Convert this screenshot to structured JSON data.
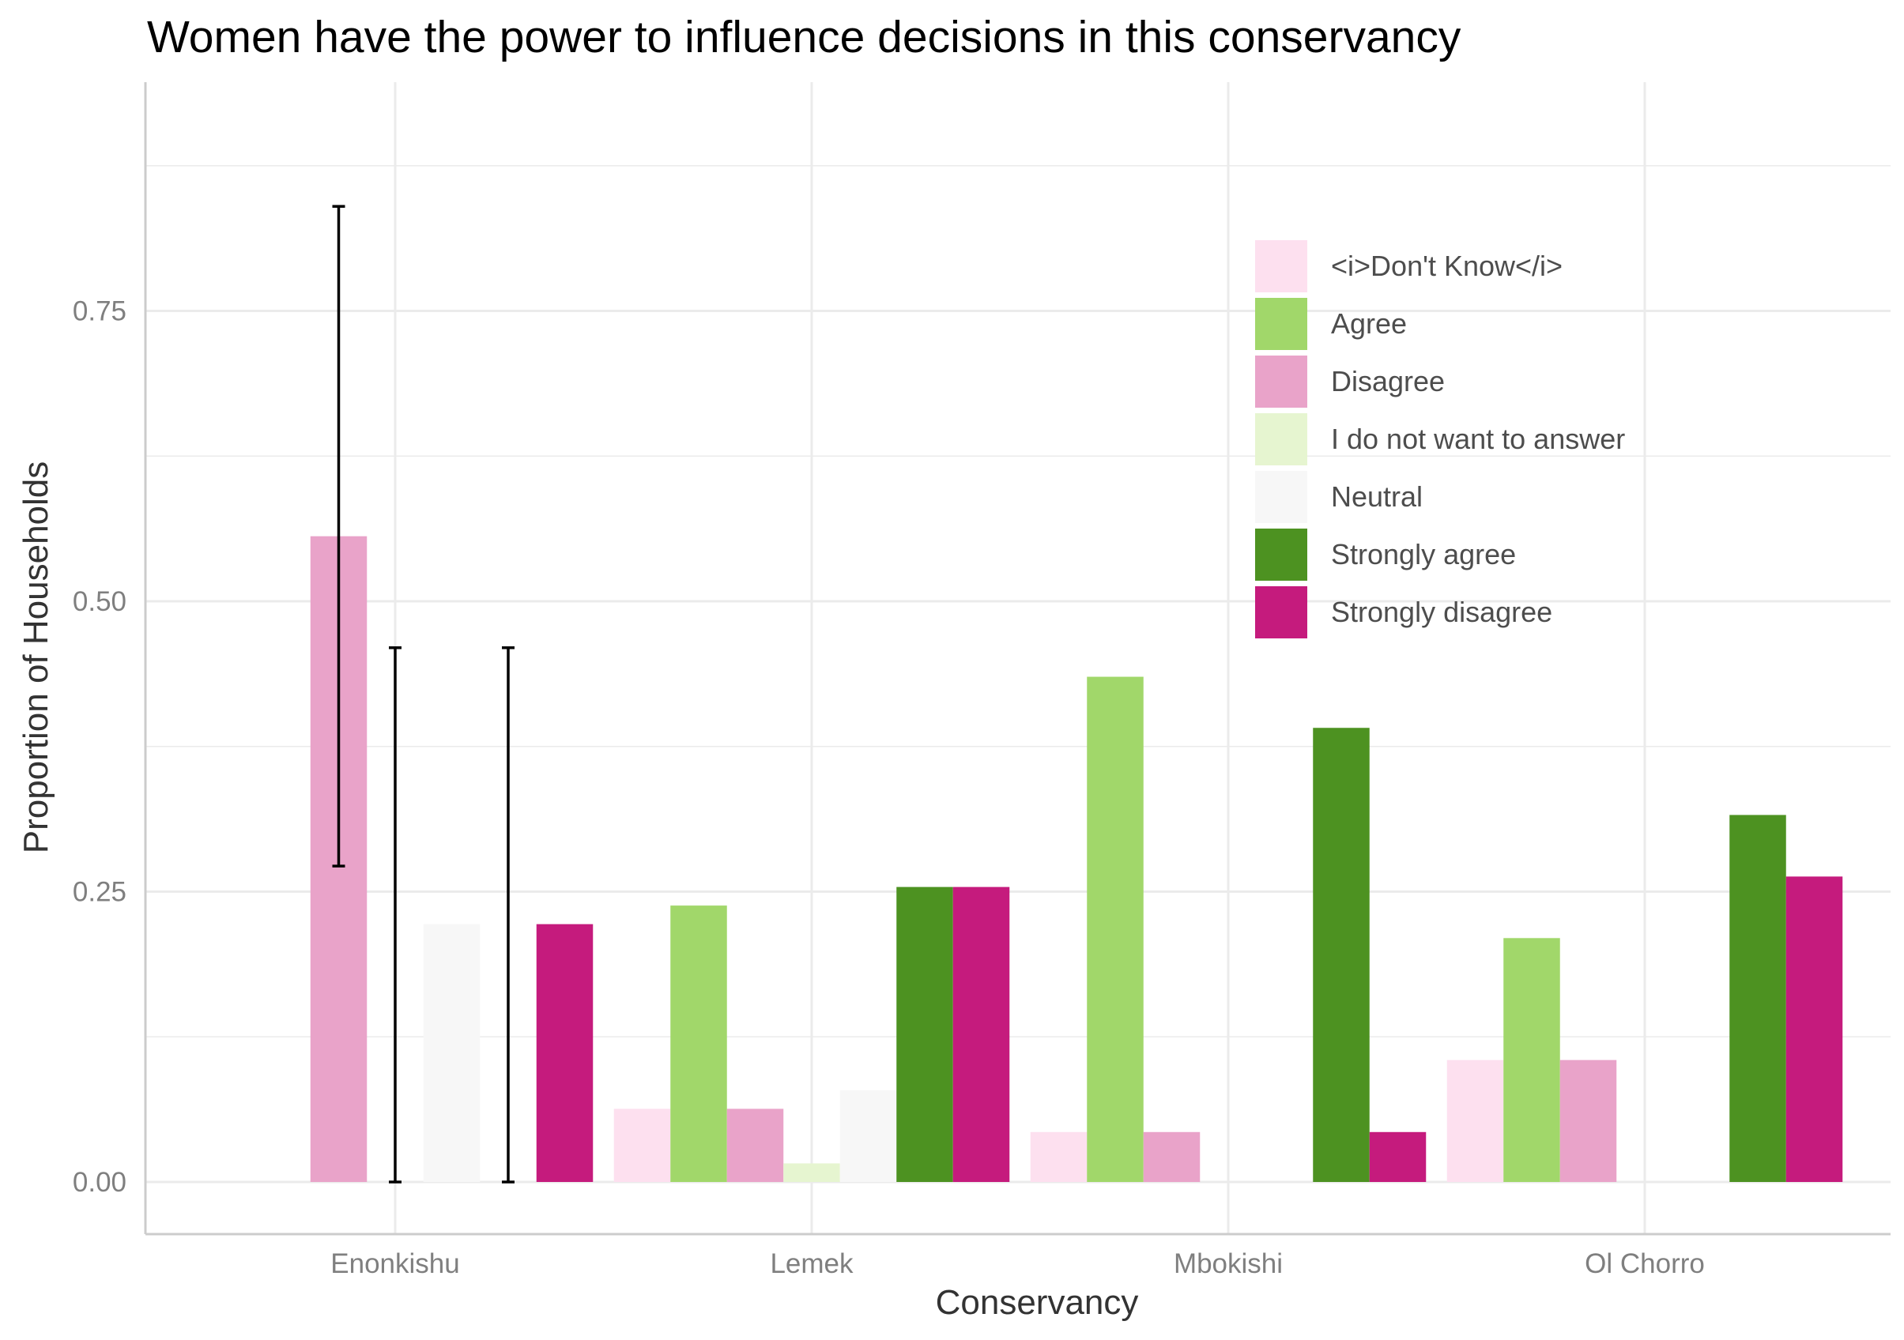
{
  "title": "Women have the power to influence decisions in this conservancy",
  "chart_data": {
    "type": "bar",
    "title": "Women have the power to influence decisions in this conservancy",
    "xlabel": "Conservancy",
    "ylabel": "Proportion of Households",
    "categories": [
      "Enonkishu",
      "Lemek",
      "Mbokishi",
      "Ol Chorro"
    ],
    "ylim": [
      -0.09,
      0.93
    ],
    "yticks": [
      0.0,
      0.25,
      0.5,
      0.75
    ],
    "ytick_labels": [
      "0.00",
      "0.25",
      "0.50",
      "0.75"
    ],
    "grid": true,
    "legend_position": "top-right",
    "series": [
      {
        "name": "<i>Don't Know</i>",
        "color": "#fde0ef",
        "values": [
          null,
          0.063,
          0.043,
          0.105
        ]
      },
      {
        "name": "Agree",
        "color": "#a1d76a",
        "values": [
          null,
          0.238,
          0.435,
          0.21
        ]
      },
      {
        "name": "Disagree",
        "color": "#e9a3c9",
        "values": [
          0.556,
          0.063,
          0.043,
          0.105
        ]
      },
      {
        "name": "I do not want to answer",
        "color": "#e6f5d0",
        "values": [
          null,
          0.016,
          null,
          null
        ]
      },
      {
        "name": "Neutral",
        "color": "#f7f7f7",
        "values": [
          0.222,
          0.079,
          null,
          null
        ]
      },
      {
        "name": "Strongly agree",
        "color": "#4d9221",
        "values": [
          null,
          0.254,
          0.391,
          0.316
        ]
      },
      {
        "name": "Strongly disagree",
        "color": "#c51b7d",
        "values": [
          0.222,
          0.254,
          0.043,
          0.263
        ]
      }
    ],
    "error_bars": [
      {
        "category": "Enonkishu",
        "series": "Disagree",
        "low": 0.272,
        "high": 0.84
      },
      {
        "category": "Enonkishu",
        "series": "I do not want to answer",
        "low": 0.0,
        "high": 0.46
      },
      {
        "category": "Enonkishu",
        "series": "Strongly agree",
        "low": 0.0,
        "high": 0.46
      }
    ]
  }
}
